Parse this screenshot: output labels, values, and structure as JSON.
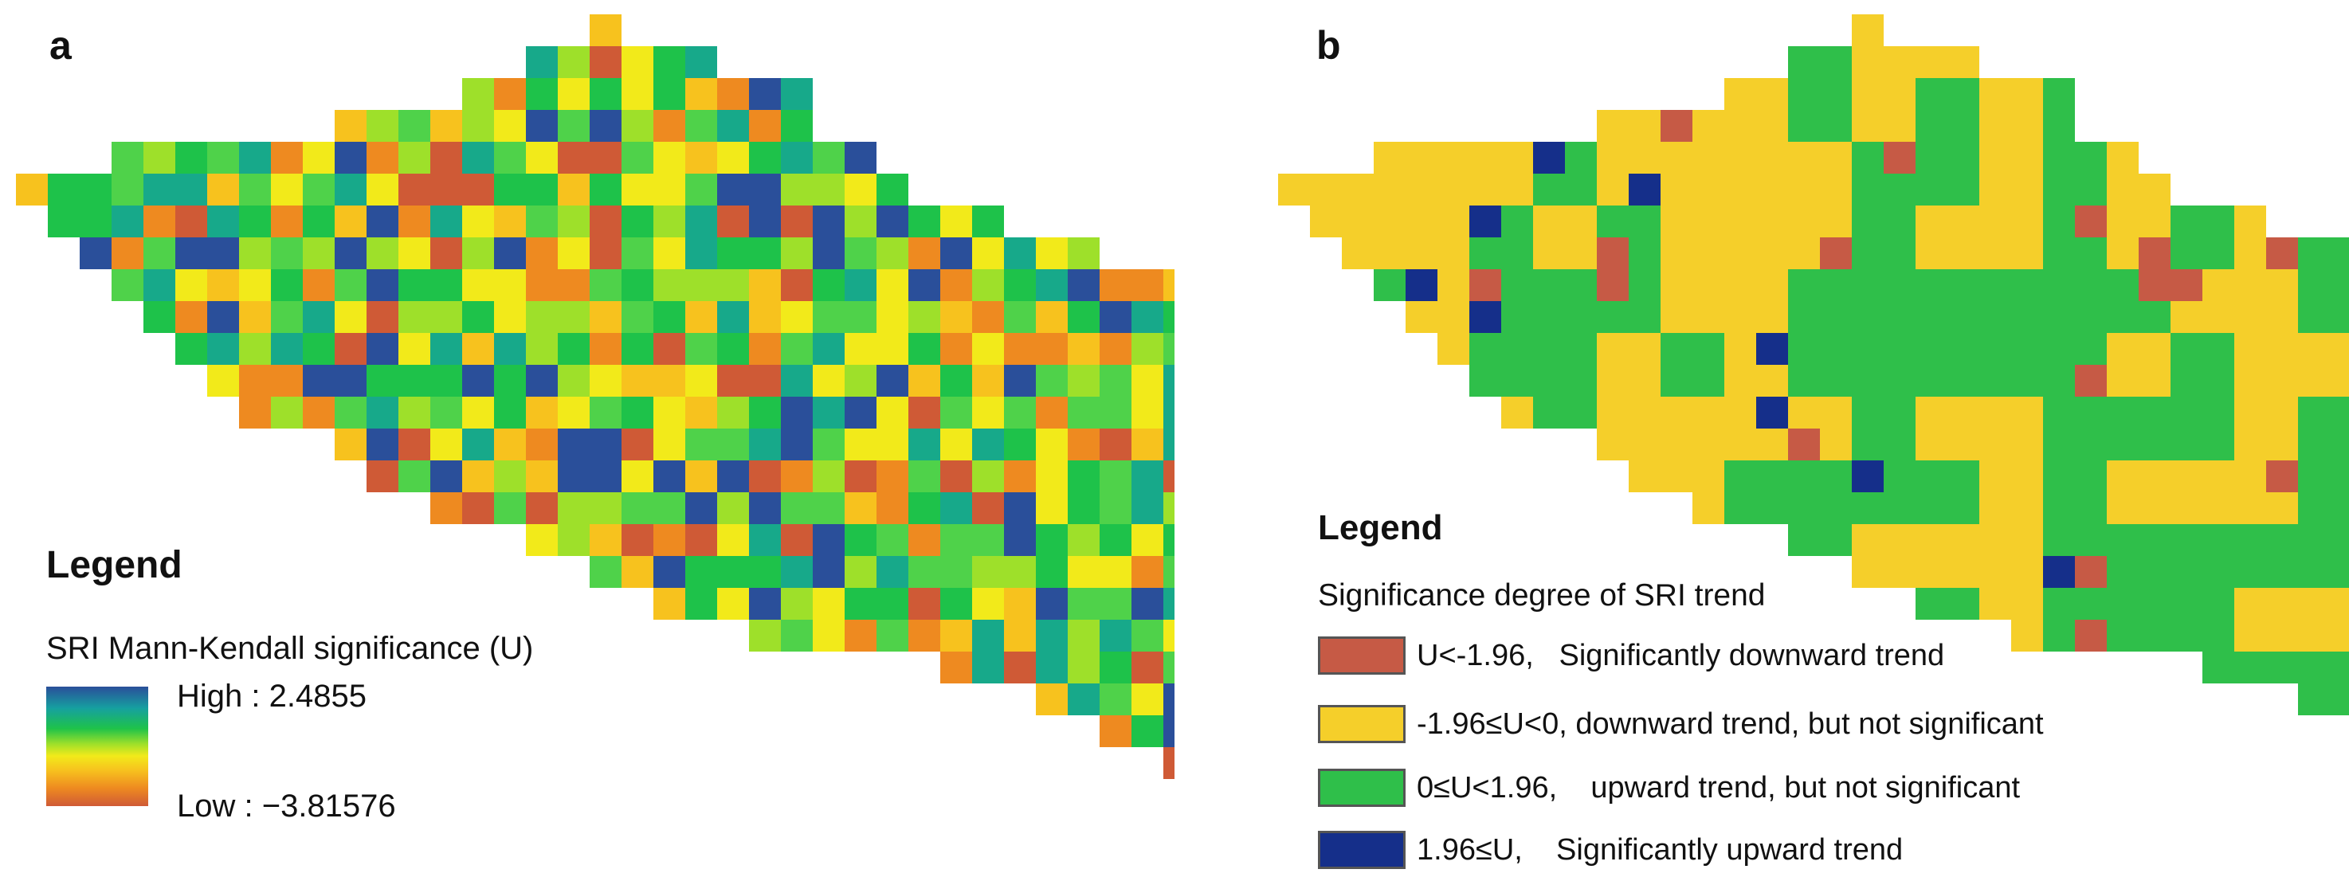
{
  "panel_a": {
    "letter": "a",
    "legend_title": "Legend",
    "legend_subtitle": "SRI Mann-Kendall significance (U)",
    "high_label": "High : 2.4855",
    "low_label": "Low : −3.81576"
  },
  "panel_b": {
    "letter": "b",
    "legend_title": "Legend",
    "legend_subtitle": "Significance degree of SRI trend",
    "classes": [
      {
        "label": "U<-1.96,   Significantly downward trend",
        "color": "#c65a45"
      },
      {
        "label": "-1.96≤U<0, downward trend, but not significant",
        "color": "#f5cf2a"
      },
      {
        "label": "0≤U<1.96,    upward trend, but not significant",
        "color": "#2fbf4a"
      },
      {
        "label": "1.96≤U,    Significantly upward trend",
        "color": "#152f8a"
      }
    ]
  },
  "map_palette": {
    "continuous": [
      "#cf5a36",
      "#ee8a20",
      "#f7c21e",
      "#f2ea1a",
      "#9ee02a",
      "#4fd24a",
      "#1ec24a",
      "#17a98a",
      "#2a4f9a"
    ],
    "classes": [
      "#c65a45",
      "#f5cf2a",
      "#2fbf4a",
      "#152f8a"
    ]
  }
}
